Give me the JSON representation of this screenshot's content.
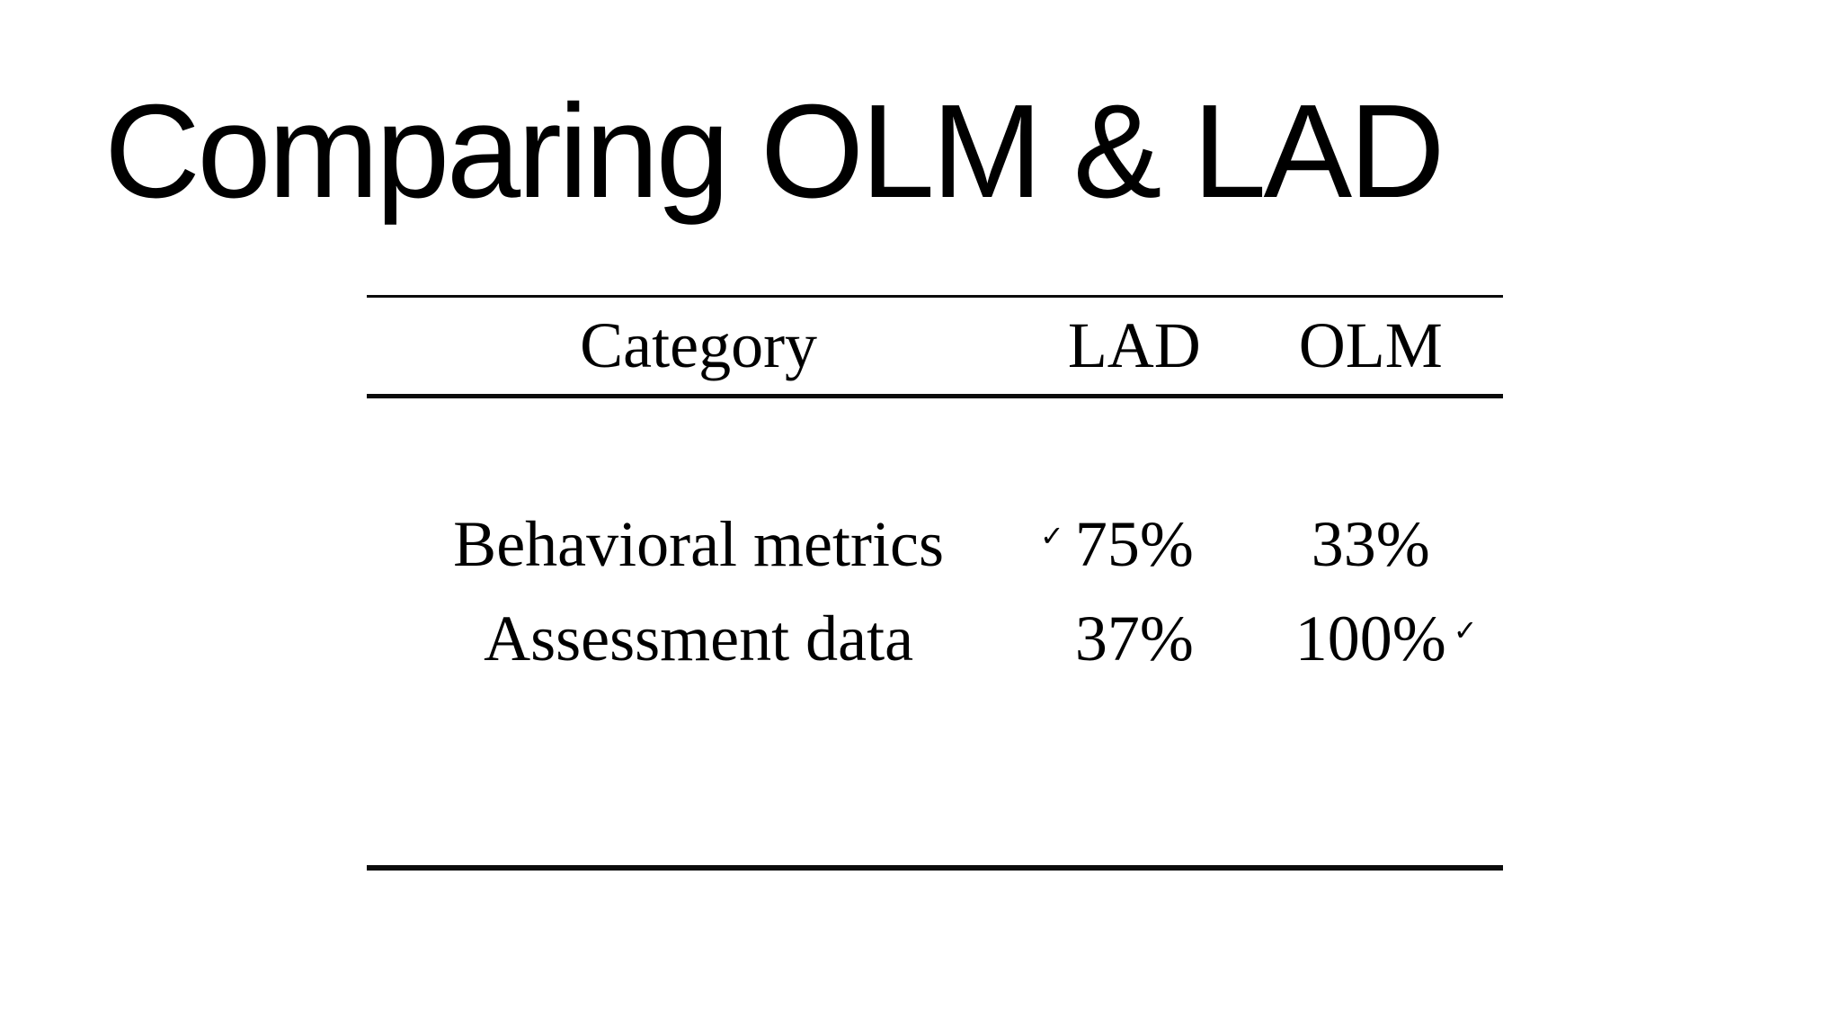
{
  "slide": {
    "title": "Comparing OLM & LAD",
    "background_color": "#ffffff",
    "text_color": "#000000",
    "rule_color": "#0b0b0b",
    "checkmark_glyph": "✓"
  },
  "table": {
    "columns": [
      "Category",
      "LAD",
      "OLM"
    ],
    "rows": [
      {
        "category": "Behavioral metrics",
        "lad": {
          "check_before": "✓",
          "text": "75%",
          "check_after": ""
        },
        "olm": {
          "check_before": "",
          "text": "33%",
          "check_after": ""
        }
      },
      {
        "category": "Assessment data",
        "lad": {
          "check_before": "",
          "text": "37%",
          "check_after": ""
        },
        "olm": {
          "check_before": "",
          "text": "100%",
          "check_after": "✓"
        }
      }
    ]
  }
}
